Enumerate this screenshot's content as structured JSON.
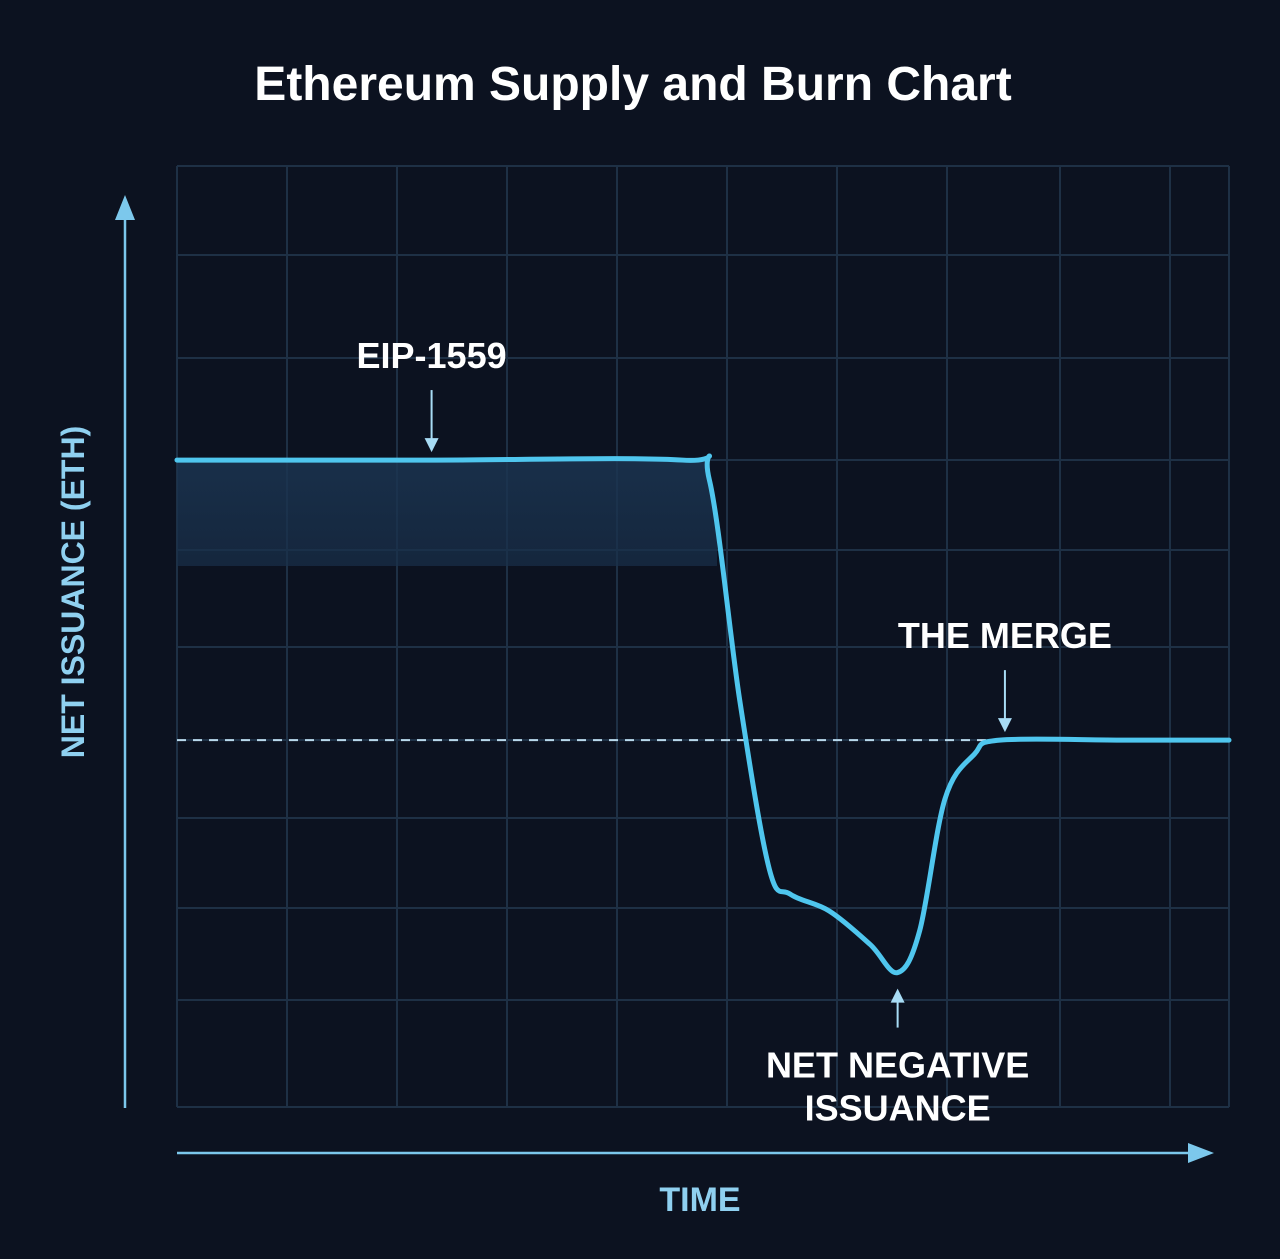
{
  "chart_data": {
    "type": "line",
    "title": "Ethereum Supply and Burn Chart",
    "xlabel": "TIME",
    "ylabel": "NET ISSUANCE (ETH)",
    "xlim": [
      0,
      100
    ],
    "ylim": [
      -1.31,
      2.05
    ],
    "grid": true,
    "baseline": 0,
    "series": [
      {
        "points": [
          [
            0,
            1.0
          ],
          [
            24,
            1.0
          ],
          [
            48,
            1.0
          ],
          [
            50.6,
            0.93
          ],
          [
            53.5,
            0.14
          ],
          [
            56.3,
            -0.46
          ],
          [
            58.3,
            -0.55
          ],
          [
            62,
            -0.61
          ],
          [
            65.9,
            -0.73
          ],
          [
            68.5,
            -0.83
          ],
          [
            70.6,
            -0.68
          ],
          [
            73,
            -0.21
          ],
          [
            75.8,
            -0.05
          ],
          [
            78.2,
            0.0
          ],
          [
            90,
            0.0
          ],
          [
            100,
            0.0
          ]
        ]
      }
    ],
    "annotations": [
      {
        "text": "EIP-1559",
        "x": 24.2,
        "y": 1.0,
        "arrow": "down"
      },
      {
        "text": "THE MERGE",
        "x": 78.7,
        "y": 0.0,
        "arrow": "down"
      },
      {
        "text_lines": [
          "NET NEGATIVE",
          "ISSUANCE"
        ],
        "x": 68.5,
        "y": -0.83,
        "arrow": "up"
      }
    ],
    "colors": {
      "background": "#0c1220",
      "line": "#4fc6ee",
      "grid": "#1e3045",
      "axis": "#7cc8ec",
      "text": "#ffffff",
      "axis_label": "#8fd0f0"
    }
  }
}
